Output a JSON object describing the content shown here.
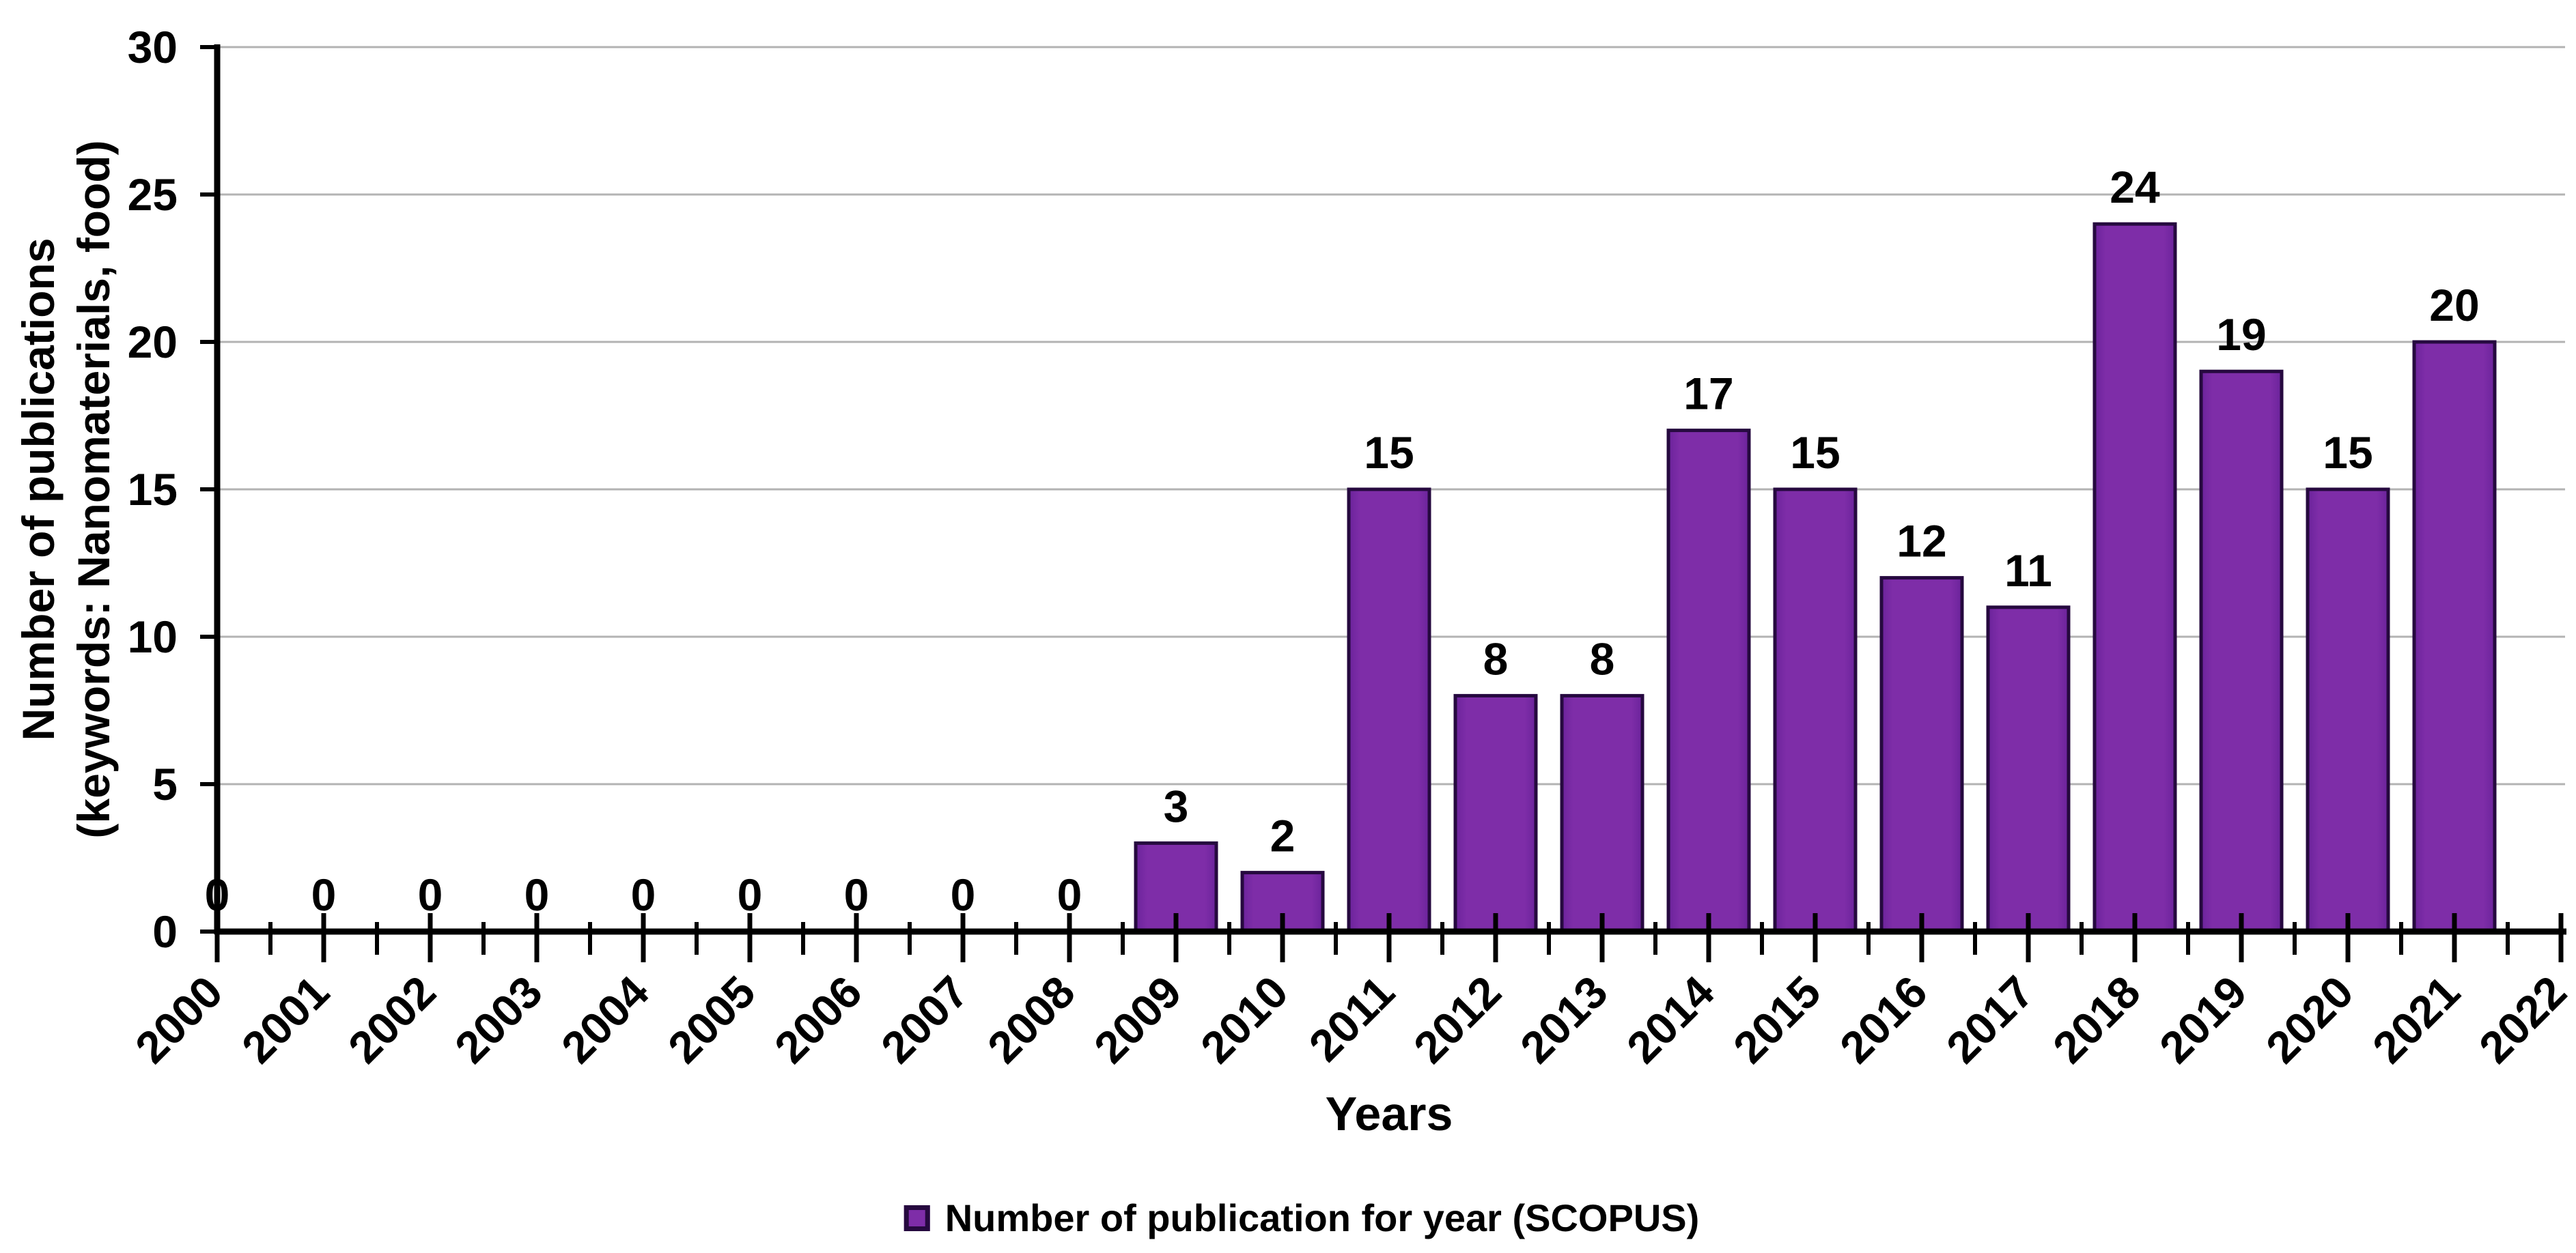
{
  "chart_data": {
    "type": "bar",
    "title": "",
    "xlabel": "Years",
    "ylabel_lines": [
      "Number of publications",
      "(keywords: Nanomaterials, food)"
    ],
    "categories": [
      "2000",
      "2001",
      "2002",
      "2003",
      "2004",
      "2005",
      "2006",
      "2007",
      "2008",
      "2009",
      "2010",
      "2011",
      "2012",
      "2013",
      "2014",
      "2015",
      "2016",
      "2017",
      "2018",
      "2019",
      "2020",
      "2021",
      "2022"
    ],
    "values": [
      0,
      0,
      0,
      0,
      0,
      0,
      0,
      0,
      0,
      3,
      2,
      15,
      8,
      8,
      17,
      15,
      12,
      11,
      24,
      19,
      15,
      20,
      null
    ],
    "ylim": [
      0,
      30
    ],
    "yticks": [
      0,
      5,
      10,
      15,
      20,
      25,
      30
    ],
    "grid": "horizontal",
    "legend": {
      "position": "bottom",
      "entries": [
        {
          "label": "Number of publication for year (SCOPUS)",
          "color": "#7E2DA8"
        }
      ]
    },
    "colors": {
      "bar_fill": "#7E2DA8",
      "bar_fill_edge": "#6B239B",
      "bar_border": "#26093F",
      "gridline": "#B3B3B3",
      "axis": "#000000",
      "text": "#000000",
      "background": "#FFFFFF"
    }
  }
}
